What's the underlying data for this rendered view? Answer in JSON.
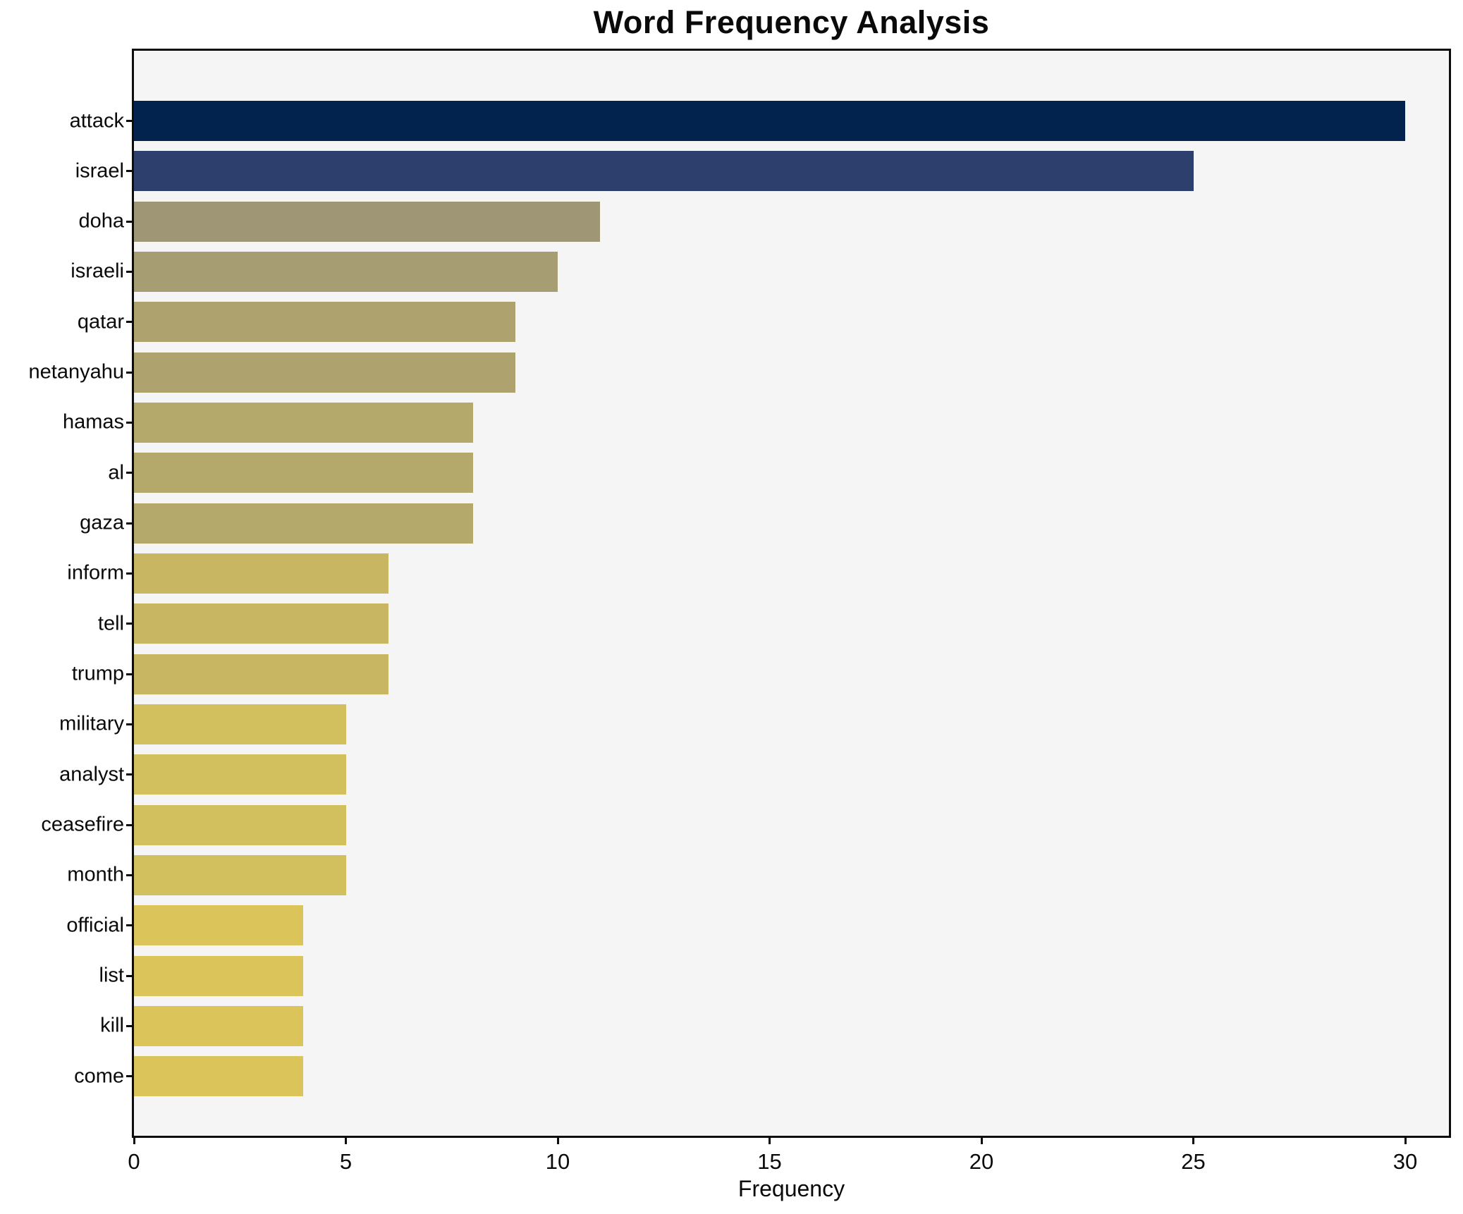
{
  "chart_data": {
    "type": "bar",
    "orientation": "horizontal",
    "title": "Word Frequency Analysis",
    "xlabel": "Frequency",
    "ylabel": "",
    "categories": [
      "attack",
      "israel",
      "doha",
      "israeli",
      "qatar",
      "netanyahu",
      "hamas",
      "al",
      "gaza",
      "inform",
      "tell",
      "trump",
      "military",
      "analyst",
      "ceasefire",
      "month",
      "official",
      "list",
      "kill",
      "come"
    ],
    "values": [
      30,
      25,
      11,
      10,
      9,
      9,
      8,
      8,
      8,
      6,
      6,
      6,
      5,
      5,
      5,
      5,
      4,
      4,
      4,
      4
    ],
    "bar_colors": [
      "#02234d",
      "#2d3f6c",
      "#9e9674",
      "#a69d72",
      "#aea26e",
      "#aea26e",
      "#b4a96b",
      "#b4a96b",
      "#b4a96b",
      "#c9b662",
      "#c9b662",
      "#c9b662",
      "#d2bf5e",
      "#d2bf5e",
      "#d2bf5e",
      "#d2bf5e",
      "#dbc55b",
      "#dbc55b",
      "#dbc55b",
      "#dbc55b"
    ],
    "xlim": [
      0,
      31
    ],
    "xticks": [
      0,
      5,
      10,
      15,
      20,
      25,
      30
    ],
    "grid": false,
    "legend_position": "none",
    "colormap": "cividis",
    "plot_background": "#f5f5f6",
    "figure_background": "#ffffff",
    "spine_color": "#0d0d0d"
  }
}
